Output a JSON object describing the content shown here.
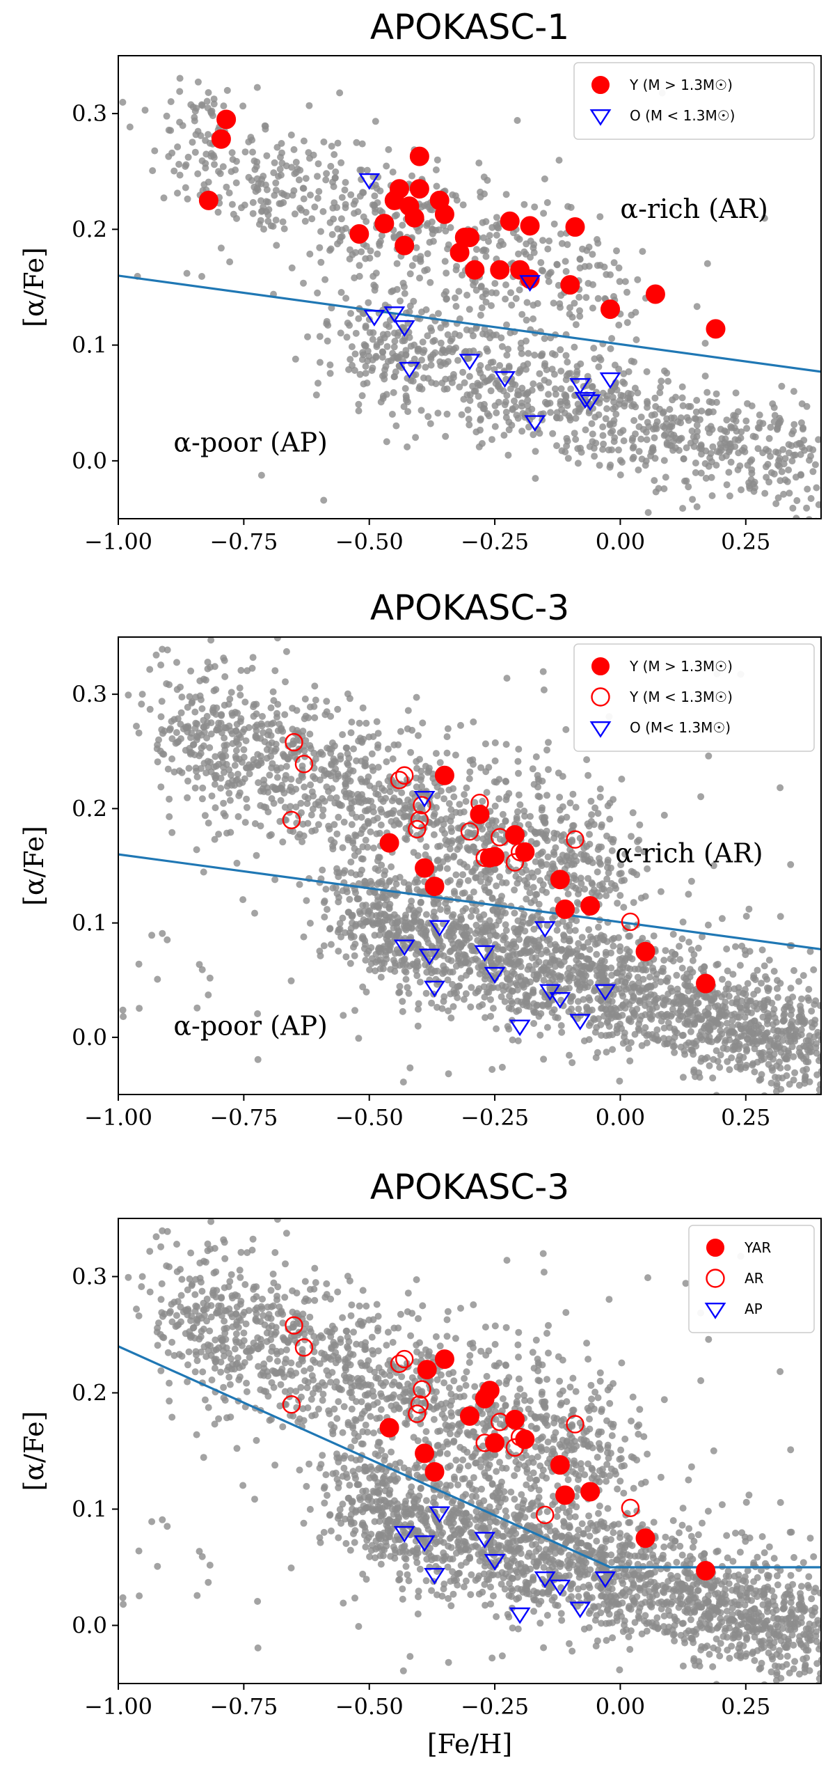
{
  "chart_data": [
    {
      "type": "scatter",
      "title": "APOKASC-1",
      "xlabel": "",
      "ylabel": "[α/Fe]",
      "xlim": [
        -1.0,
        0.4
      ],
      "ylim": [
        -0.05,
        0.35
      ],
      "x_ticks": [
        "−1.00",
        "−0.75",
        "−0.50",
        "−0.25",
        "0.00",
        "0.25"
      ],
      "y_ticks": [
        "0.0",
        "0.1",
        "0.2",
        "0.3"
      ],
      "annotations": [
        {
          "text": "α-rich (AR)",
          "x": 0.0,
          "y": 0.21
        },
        {
          "text": "α-poor (AP)",
          "x": -0.89,
          "y": 0.008
        }
      ],
      "divider_line": {
        "x": [
          -1.0,
          0.4
        ],
        "y": [
          0.16,
          0.077
        ]
      },
      "background": {
        "name": "all stars",
        "color": "#8c8c8c",
        "n_points": 1500,
        "seed": 11
      },
      "series": [
        {
          "name": "Y (M > 1.3M☉)",
          "marker": "filled-circle",
          "color": "#ff0000",
          "x": [
            -0.82,
            -0.795,
            -0.785,
            -0.52,
            -0.47,
            -0.45,
            -0.44,
            -0.43,
            -0.42,
            -0.41,
            -0.4,
            -0.4,
            -0.36,
            -0.35,
            -0.32,
            -0.31,
            -0.3,
            -0.29,
            -0.24,
            -0.22,
            -0.2,
            -0.18,
            -0.18,
            -0.1,
            -0.09,
            -0.02,
            0.07,
            0.19
          ],
          "y": [
            0.225,
            0.278,
            0.295,
            0.196,
            0.205,
            0.225,
            0.235,
            0.186,
            0.22,
            0.21,
            0.235,
            0.263,
            0.225,
            0.213,
            0.18,
            0.193,
            0.193,
            0.165,
            0.165,
            0.207,
            0.165,
            0.203,
            0.157,
            0.152,
            0.202,
            0.131,
            0.144,
            0.114
          ]
        },
        {
          "name": "O (M < 1.3M☉)",
          "marker": "open-triangle-down",
          "color": "#0000ff",
          "x": [
            -0.5,
            -0.49,
            -0.45,
            -0.43,
            -0.42,
            -0.3,
            -0.23,
            -0.18,
            -0.17,
            -0.08,
            -0.07,
            -0.06,
            -0.02
          ],
          "y": [
            0.243,
            0.125,
            0.128,
            0.116,
            0.08,
            0.087,
            0.072,
            0.155,
            0.034,
            0.066,
            0.054,
            0.052,
            0.071
          ]
        }
      ]
    },
    {
      "type": "scatter",
      "title": "APOKASC-3",
      "xlabel": "",
      "ylabel": "[α/Fe]",
      "xlim": [
        -1.0,
        0.4
      ],
      "ylim": [
        -0.05,
        0.35
      ],
      "x_ticks": [
        "−1.00",
        "−0.75",
        "−0.50",
        "−0.25",
        "0.00",
        "0.25"
      ],
      "y_ticks": [
        "0.0",
        "0.1",
        "0.2",
        "0.3"
      ],
      "annotations": [
        {
          "text": "α-rich (AR)",
          "x": -0.01,
          "y": 0.153
        },
        {
          "text": "α-poor (AP)",
          "x": -0.89,
          "y": 0.002
        }
      ],
      "divider_line": {
        "x": [
          -1.0,
          0.4
        ],
        "y": [
          0.16,
          0.077
        ]
      },
      "background": {
        "name": "all stars",
        "color": "#8c8c8c",
        "n_points": 3200,
        "seed": 23
      },
      "series": [
        {
          "name": "Y (M > 1.3M☉)",
          "marker": "filled-circle",
          "color": "#ff0000",
          "x": [
            -0.46,
            -0.39,
            -0.37,
            -0.35,
            -0.28,
            -0.26,
            -0.25,
            -0.21,
            -0.19,
            -0.12,
            -0.11,
            -0.06,
            0.05,
            0.17
          ],
          "y": [
            0.17,
            0.148,
            0.132,
            0.229,
            0.195,
            0.157,
            0.158,
            0.177,
            0.162,
            0.138,
            0.112,
            0.115,
            0.075,
            0.047
          ]
        },
        {
          "name": "Y (M < 1.3M☉)",
          "marker": "open-circle",
          "color": "#ff0000",
          "x": [
            -0.655,
            -0.65,
            -0.63,
            -0.44,
            -0.43,
            -0.405,
            -0.4,
            -0.395,
            -0.3,
            -0.28,
            -0.27,
            -0.24,
            -0.21,
            -0.2,
            -0.09,
            0.02
          ],
          "y": [
            0.19,
            0.258,
            0.239,
            0.225,
            0.229,
            0.182,
            0.19,
            0.203,
            0.18,
            0.205,
            0.157,
            0.175,
            0.153,
            0.162,
            0.173,
            0.101
          ]
        },
        {
          "name": "O (M< 1.3M☉)",
          "marker": "open-triangle-down",
          "color": "#0000ff",
          "x": [
            -0.43,
            -0.39,
            -0.38,
            -0.37,
            -0.36,
            -0.27,
            -0.25,
            -0.2,
            -0.15,
            -0.14,
            -0.12,
            -0.08,
            -0.03
          ],
          "y": [
            0.08,
            0.21,
            0.072,
            0.044,
            0.097,
            0.075,
            0.056,
            0.01,
            0.096,
            0.041,
            0.034,
            0.015,
            0.041
          ]
        }
      ]
    },
    {
      "type": "scatter",
      "title": "APOKASC-3",
      "xlabel": "[Fe/H]",
      "ylabel": "[α/Fe]",
      "xlim": [
        -1.0,
        0.4
      ],
      "ylim": [
        -0.05,
        0.35
      ],
      "x_ticks": [
        "−1.00",
        "−0.75",
        "−0.50",
        "−0.25",
        "0.00",
        "0.25"
      ],
      "y_ticks": [
        "0.0",
        "0.1",
        "0.2",
        "0.3"
      ],
      "annotations": [],
      "divider_line": {
        "x": [
          -1.0,
          -0.02,
          0.4
        ],
        "y": [
          0.24,
          0.05,
          0.05
        ]
      },
      "background": {
        "name": "all stars",
        "color": "#8c8c8c",
        "n_points": 3200,
        "seed": 23
      },
      "series": [
        {
          "name": "YAR",
          "marker": "filled-circle",
          "color": "#ff0000",
          "x": [
            -0.46,
            -0.39,
            -0.385,
            -0.37,
            -0.35,
            -0.3,
            -0.27,
            -0.26,
            -0.25,
            -0.21,
            -0.19,
            -0.12,
            -0.11,
            -0.06,
            0.05,
            0.17
          ],
          "y": [
            0.17,
            0.148,
            0.22,
            0.132,
            0.229,
            0.18,
            0.195,
            0.202,
            0.157,
            0.177,
            0.16,
            0.138,
            0.112,
            0.115,
            0.075,
            0.047
          ]
        },
        {
          "name": "AR",
          "marker": "open-circle",
          "color": "#ff0000",
          "x": [
            -0.655,
            -0.65,
            -0.63,
            -0.44,
            -0.43,
            -0.405,
            -0.4,
            -0.395,
            -0.27,
            -0.24,
            -0.21,
            -0.2,
            -0.15,
            -0.09,
            0.02
          ],
          "y": [
            0.19,
            0.258,
            0.239,
            0.225,
            0.229,
            0.182,
            0.19,
            0.203,
            0.157,
            0.175,
            0.153,
            0.162,
            0.095,
            0.173,
            0.101
          ]
        },
        {
          "name": "AP",
          "marker": "open-triangle-down",
          "color": "#0000ff",
          "x": [
            -0.43,
            -0.39,
            -0.37,
            -0.36,
            -0.27,
            -0.25,
            -0.2,
            -0.15,
            -0.12,
            -0.08,
            -0.03
          ],
          "y": [
            0.08,
            0.072,
            0.044,
            0.097,
            0.075,
            0.056,
            0.01,
            0.041,
            0.034,
            0.015,
            0.041
          ]
        }
      ]
    }
  ]
}
